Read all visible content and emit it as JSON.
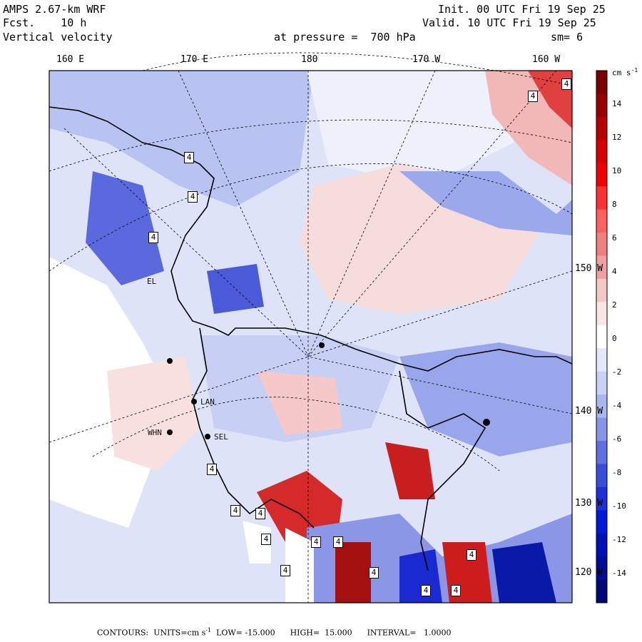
{
  "header": {
    "model": "AMPS 2.67-km WRF",
    "fcst": "Fcst.    10 h",
    "variable": "Vertical velocity",
    "init": "Init. 00 UTC Fri 19 Sep 25",
    "valid": "Valid. 10 UTC Fri 19 Sep 25",
    "pressure": "at pressure =  700 hPa",
    "smoothing": "sm= 6"
  },
  "longitude_labels": [
    "160 E",
    "170 E",
    "180",
    "170 W",
    "160 W"
  ],
  "latitude_labels": [
    "150 W",
    "140 W",
    "130 W",
    "120 W"
  ],
  "colorbar": {
    "units": "cm s",
    "units_exp": "-1",
    "ticks": [
      "14",
      "12",
      "10",
      "8",
      "6",
      "4",
      "2",
      "0",
      "-2",
      "-4",
      "-6",
      "-8",
      "-10",
      "-12",
      "-14"
    ],
    "colors": [
      "#7a0000",
      "#990000",
      "#b80000",
      "#d60000",
      "#f00000",
      "#ff3030",
      "#ff6060",
      "#f08080",
      "#f0a0a0",
      "#f5c8c8",
      "#fbe6e6",
      "#ffffff",
      "#e4e8fb",
      "#c9d1f6",
      "#aab6f0",
      "#8795e8",
      "#6070e0",
      "#3a4cda",
      "#1e30d8",
      "#0018d8",
      "#0010b8",
      "#000c98",
      "#000878"
    ]
  },
  "stations": [
    "EL",
    "LAN",
    "WHN",
    "SEL"
  ],
  "contour_markers": [
    "4",
    "4",
    "4",
    "4",
    "4",
    "4",
    "4",
    "4",
    "4",
    "4",
    "4",
    "4",
    "4",
    "4"
  ],
  "footer": {
    "label": "CONTOURS:  UNITS=cm s",
    "exp": "-1",
    "rest": "  LOW= -15.000      HIGH=  15.000      INTERVAL=   1.0000"
  }
}
